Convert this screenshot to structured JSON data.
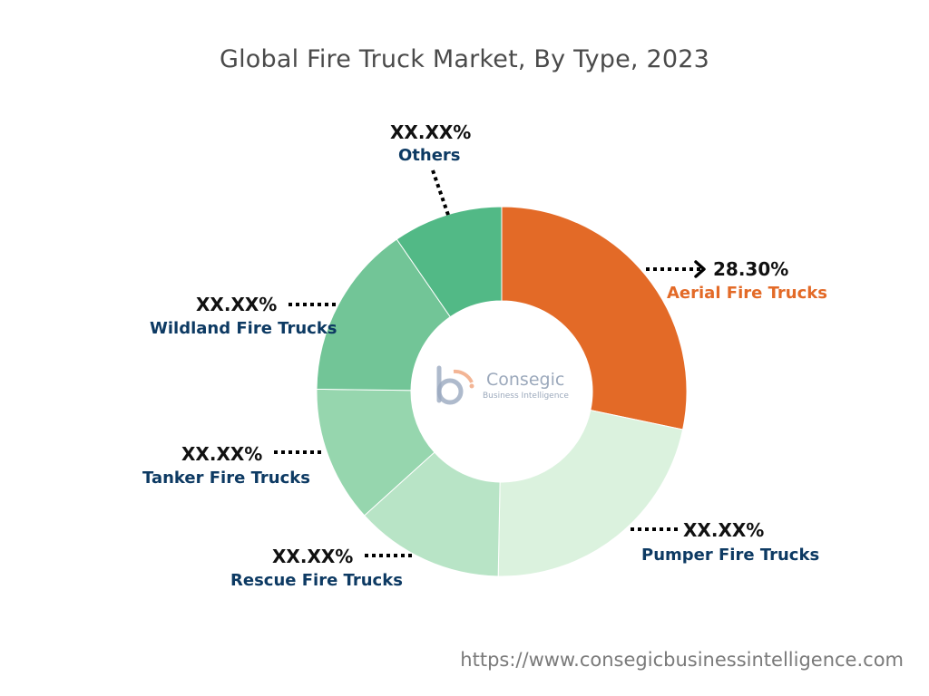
{
  "chart_data": {
    "type": "pie",
    "variant": "donut",
    "title": "Global Fire Truck Market, By Type, 2023",
    "segments": [
      {
        "name": "Aerial Fire Trucks",
        "value": 28.3,
        "label": "28.30%",
        "color": "#e36a27",
        "name_color": "#e36a27",
        "has_arrow": true
      },
      {
        "name": "Pumper Fire Trucks",
        "value": 22.0,
        "label": "XX.XX%",
        "color": "#dbf2de",
        "name_color": "#0d3a63"
      },
      {
        "name": "Rescue Fire Trucks",
        "value": 13.0,
        "label": "XX.XX%",
        "color": "#b8e4c6",
        "name_color": "#0d3a63"
      },
      {
        "name": "Tanker Fire Trucks",
        "value": 11.9,
        "label": "XX.XX%",
        "color": "#96d6ae",
        "name_color": "#0d3a63"
      },
      {
        "name": "Wildland Fire Trucks",
        "value": 15.2,
        "label": "XX.XX%",
        "color": "#72c597",
        "name_color": "#0d3a63"
      },
      {
        "name": "Others",
        "value": 9.6,
        "label": "XX.XX%",
        "color": "#52b986",
        "name_color": "#0d3a63"
      }
    ],
    "start_angle_deg": 0,
    "direction": "clockwise"
  },
  "logo": {
    "name": "Consegic",
    "subtitle": "Business Intelligence"
  },
  "source_url": "https://www.consegicbusinessintelligence.com"
}
